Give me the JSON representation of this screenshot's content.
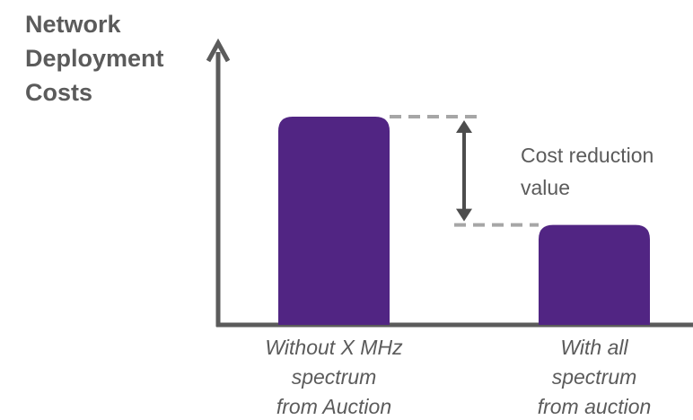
{
  "chart_data": {
    "type": "bar",
    "title": "",
    "xlabel": "",
    "ylabel_lines": [
      "Network",
      "Deployment",
      "Costs"
    ],
    "categories": [
      {
        "id": "without",
        "label_lines": [
          "Without X MHz",
          "spectrum",
          "from Auction"
        ]
      },
      {
        "id": "with",
        "label_lines": [
          "With  all",
          "spectrum",
          "from auction"
        ]
      }
    ],
    "values": [
      100,
      48
    ],
    "ylim": [
      0,
      100
    ],
    "ticks_shown": false,
    "grid": false,
    "legend": "none",
    "annotation": {
      "lines": [
        "Cost reduction",
        "value"
      ],
      "marks_difference_between": [
        "without",
        "with"
      ]
    },
    "colors": {
      "bar": "#512583",
      "axis": "#5b5b5b",
      "text": "#5b5b5b",
      "dashed_guide": "#a6a6a6",
      "arrow": "#4d4d4d"
    }
  }
}
